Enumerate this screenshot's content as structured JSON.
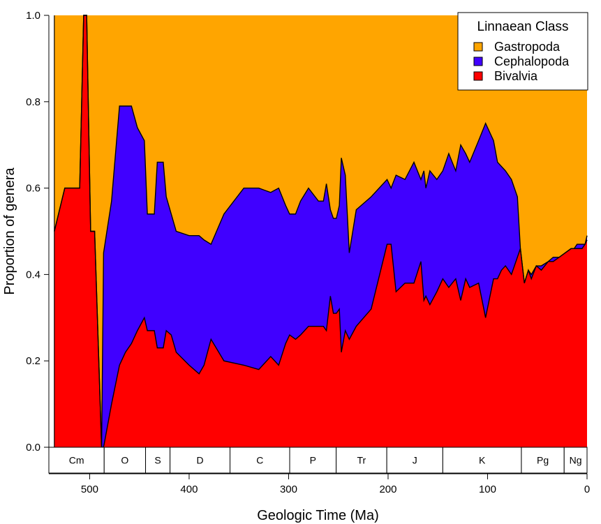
{
  "chart_data": {
    "type": "area",
    "stacked": true,
    "normalized": true,
    "xlabel": "Geologic Time (Ma)",
    "ylabel": "Proportion of genera",
    "xlim": [
      541,
      0
    ],
    "ylim": [
      0,
      1
    ],
    "x_reversed": true,
    "x_ticks": [
      500,
      400,
      300,
      200,
      100,
      0
    ],
    "y_ticks": [
      0.0,
      0.2,
      0.4,
      0.6,
      0.8,
      1.0
    ],
    "y_tick_labels": [
      "0.0",
      "0.2",
      "0.4",
      "0.6",
      "0.8",
      "1.0"
    ],
    "grid": false,
    "legend": {
      "title": "Linnaean Class",
      "position": "top-right",
      "entries": [
        "Gastropoda",
        "Cephalopoda",
        "Bivalvia"
      ]
    },
    "series": [
      {
        "name": "Bivalvia",
        "color": "#FF0000",
        "points": [
          [
            535.5,
            0.5
          ],
          [
            525,
            0.6
          ],
          [
            510,
            0.6
          ],
          [
            506,
            1.0
          ],
          [
            503,
            1.0
          ],
          [
            499,
            0.5
          ],
          [
            495,
            0.5
          ],
          [
            488,
            0.0
          ],
          [
            486,
            0.0
          ],
          [
            478,
            0.1
          ],
          [
            470,
            0.19
          ],
          [
            464,
            0.22
          ],
          [
            458,
            0.24
          ],
          [
            452,
            0.27
          ],
          [
            445,
            0.3
          ],
          [
            442,
            0.27
          ],
          [
            435,
            0.27
          ],
          [
            432,
            0.23
          ],
          [
            426,
            0.23
          ],
          [
            423,
            0.27
          ],
          [
            418,
            0.26
          ],
          [
            413,
            0.22
          ],
          [
            400,
            0.19
          ],
          [
            390,
            0.17
          ],
          [
            385,
            0.19
          ],
          [
            378,
            0.25
          ],
          [
            365,
            0.2
          ],
          [
            345,
            0.19
          ],
          [
            330,
            0.18
          ],
          [
            318,
            0.21
          ],
          [
            310,
            0.19
          ],
          [
            303,
            0.24
          ],
          [
            299,
            0.26
          ],
          [
            293,
            0.25
          ],
          [
            288,
            0.26
          ],
          [
            280,
            0.28
          ],
          [
            270,
            0.28
          ],
          [
            265,
            0.28
          ],
          [
            262,
            0.27
          ],
          [
            258,
            0.35
          ],
          [
            255,
            0.31
          ],
          [
            252,
            0.31
          ],
          [
            249,
            0.32
          ],
          [
            247,
            0.22
          ],
          [
            243,
            0.27
          ],
          [
            239,
            0.25
          ],
          [
            232,
            0.28
          ],
          [
            217,
            0.32
          ],
          [
            201,
            0.47
          ],
          [
            197,
            0.47
          ],
          [
            192,
            0.36
          ],
          [
            183,
            0.38
          ],
          [
            174,
            0.38
          ],
          [
            167,
            0.43
          ],
          [
            164,
            0.34
          ],
          [
            162,
            0.35
          ],
          [
            158,
            0.33
          ],
          [
            151,
            0.36
          ],
          [
            145,
            0.39
          ],
          [
            139,
            0.37
          ],
          [
            132,
            0.39
          ],
          [
            127,
            0.34
          ],
          [
            122,
            0.39
          ],
          [
            118,
            0.37
          ],
          [
            109,
            0.38
          ],
          [
            102,
            0.3
          ],
          [
            94,
            0.39
          ],
          [
            90,
            0.39
          ],
          [
            86,
            0.41
          ],
          [
            82,
            0.42
          ],
          [
            76,
            0.4
          ],
          [
            70,
            0.44
          ],
          [
            67,
            0.46
          ],
          [
            63,
            0.38
          ],
          [
            59,
            0.41
          ],
          [
            56,
            0.39
          ],
          [
            51,
            0.42
          ],
          [
            46,
            0.41
          ],
          [
            39,
            0.43
          ],
          [
            34,
            0.43
          ],
          [
            28,
            0.44
          ],
          [
            22,
            0.45
          ],
          [
            16,
            0.46
          ],
          [
            13,
            0.46
          ],
          [
            10,
            0.46
          ],
          [
            5,
            0.46
          ],
          [
            2,
            0.47
          ],
          [
            0,
            0.48
          ]
        ]
      },
      {
        "name": "Cephalopoda",
        "color": "#4000FF",
        "points": [
          [
            535.5,
            0.5
          ],
          [
            525,
            0.6
          ],
          [
            510,
            0.6
          ],
          [
            506,
            1.0
          ],
          [
            503,
            1.0
          ],
          [
            499,
            0.5
          ],
          [
            495,
            0.5
          ],
          [
            488,
            0.0
          ],
          [
            486,
            0.45
          ],
          [
            478,
            0.57
          ],
          [
            470,
            0.79
          ],
          [
            464,
            0.79
          ],
          [
            458,
            0.79
          ],
          [
            452,
            0.74
          ],
          [
            445,
            0.71
          ],
          [
            442,
            0.54
          ],
          [
            435,
            0.54
          ],
          [
            432,
            0.66
          ],
          [
            426,
            0.66
          ],
          [
            423,
            0.58
          ],
          [
            418,
            0.54
          ],
          [
            413,
            0.5
          ],
          [
            400,
            0.49
          ],
          [
            390,
            0.49
          ],
          [
            385,
            0.48
          ],
          [
            378,
            0.47
          ],
          [
            365,
            0.54
          ],
          [
            345,
            0.6
          ],
          [
            330,
            0.6
          ],
          [
            318,
            0.59
          ],
          [
            310,
            0.6
          ],
          [
            303,
            0.56
          ],
          [
            299,
            0.54
          ],
          [
            293,
            0.54
          ],
          [
            288,
            0.57
          ],
          [
            280,
            0.6
          ],
          [
            270,
            0.57
          ],
          [
            265,
            0.57
          ],
          [
            262,
            0.61
          ],
          [
            258,
            0.55
          ],
          [
            255,
            0.53
          ],
          [
            252,
            0.53
          ],
          [
            249,
            0.56
          ],
          [
            247,
            0.67
          ],
          [
            243,
            0.63
          ],
          [
            239,
            0.45
          ],
          [
            232,
            0.55
          ],
          [
            217,
            0.58
          ],
          [
            201,
            0.62
          ],
          [
            197,
            0.6
          ],
          [
            192,
            0.63
          ],
          [
            183,
            0.62
          ],
          [
            174,
            0.66
          ],
          [
            167,
            0.62
          ],
          [
            164,
            0.64
          ],
          [
            162,
            0.6
          ],
          [
            158,
            0.64
          ],
          [
            151,
            0.62
          ],
          [
            145,
            0.64
          ],
          [
            139,
            0.68
          ],
          [
            132,
            0.64
          ],
          [
            127,
            0.7
          ],
          [
            122,
            0.68
          ],
          [
            118,
            0.66
          ],
          [
            109,
            0.71
          ],
          [
            102,
            0.75
          ],
          [
            94,
            0.71
          ],
          [
            90,
            0.66
          ],
          [
            86,
            0.65
          ],
          [
            82,
            0.64
          ],
          [
            76,
            0.62
          ],
          [
            70,
            0.58
          ],
          [
            67,
            0.46
          ],
          [
            63,
            0.38
          ],
          [
            59,
            0.41
          ],
          [
            56,
            0.4
          ],
          [
            51,
            0.42
          ],
          [
            46,
            0.42
          ],
          [
            39,
            0.43
          ],
          [
            34,
            0.44
          ],
          [
            28,
            0.44
          ],
          [
            22,
            0.45
          ],
          [
            16,
            0.46
          ],
          [
            13,
            0.46
          ],
          [
            10,
            0.47
          ],
          [
            5,
            0.47
          ],
          [
            2,
            0.47
          ],
          [
            0,
            0.49
          ]
        ]
      },
      {
        "name": "Gastropoda",
        "color": "#FFA500",
        "points": [
          [
            535.5,
            1.0
          ],
          [
            0,
            1.0
          ]
        ]
      }
    ],
    "periods": [
      {
        "label": "Cm",
        "start": 541,
        "end": 485.4
      },
      {
        "label": "O",
        "start": 485.4,
        "end": 443.8
      },
      {
        "label": "S",
        "start": 443.8,
        "end": 419.2
      },
      {
        "label": "D",
        "start": 419.2,
        "end": 358.9
      },
      {
        "label": "C",
        "start": 358.9,
        "end": 298.9
      },
      {
        "label": "P",
        "start": 298.9,
        "end": 252.2
      },
      {
        "label": "Tr",
        "start": 252.2,
        "end": 201.3
      },
      {
        "label": "J",
        "start": 201.3,
        "end": 145.0
      },
      {
        "label": "K",
        "start": 145.0,
        "end": 66.0
      },
      {
        "label": "Pg",
        "start": 66.0,
        "end": 23.0
      },
      {
        "label": "Ng",
        "start": 23.0,
        "end": 0
      }
    ]
  }
}
